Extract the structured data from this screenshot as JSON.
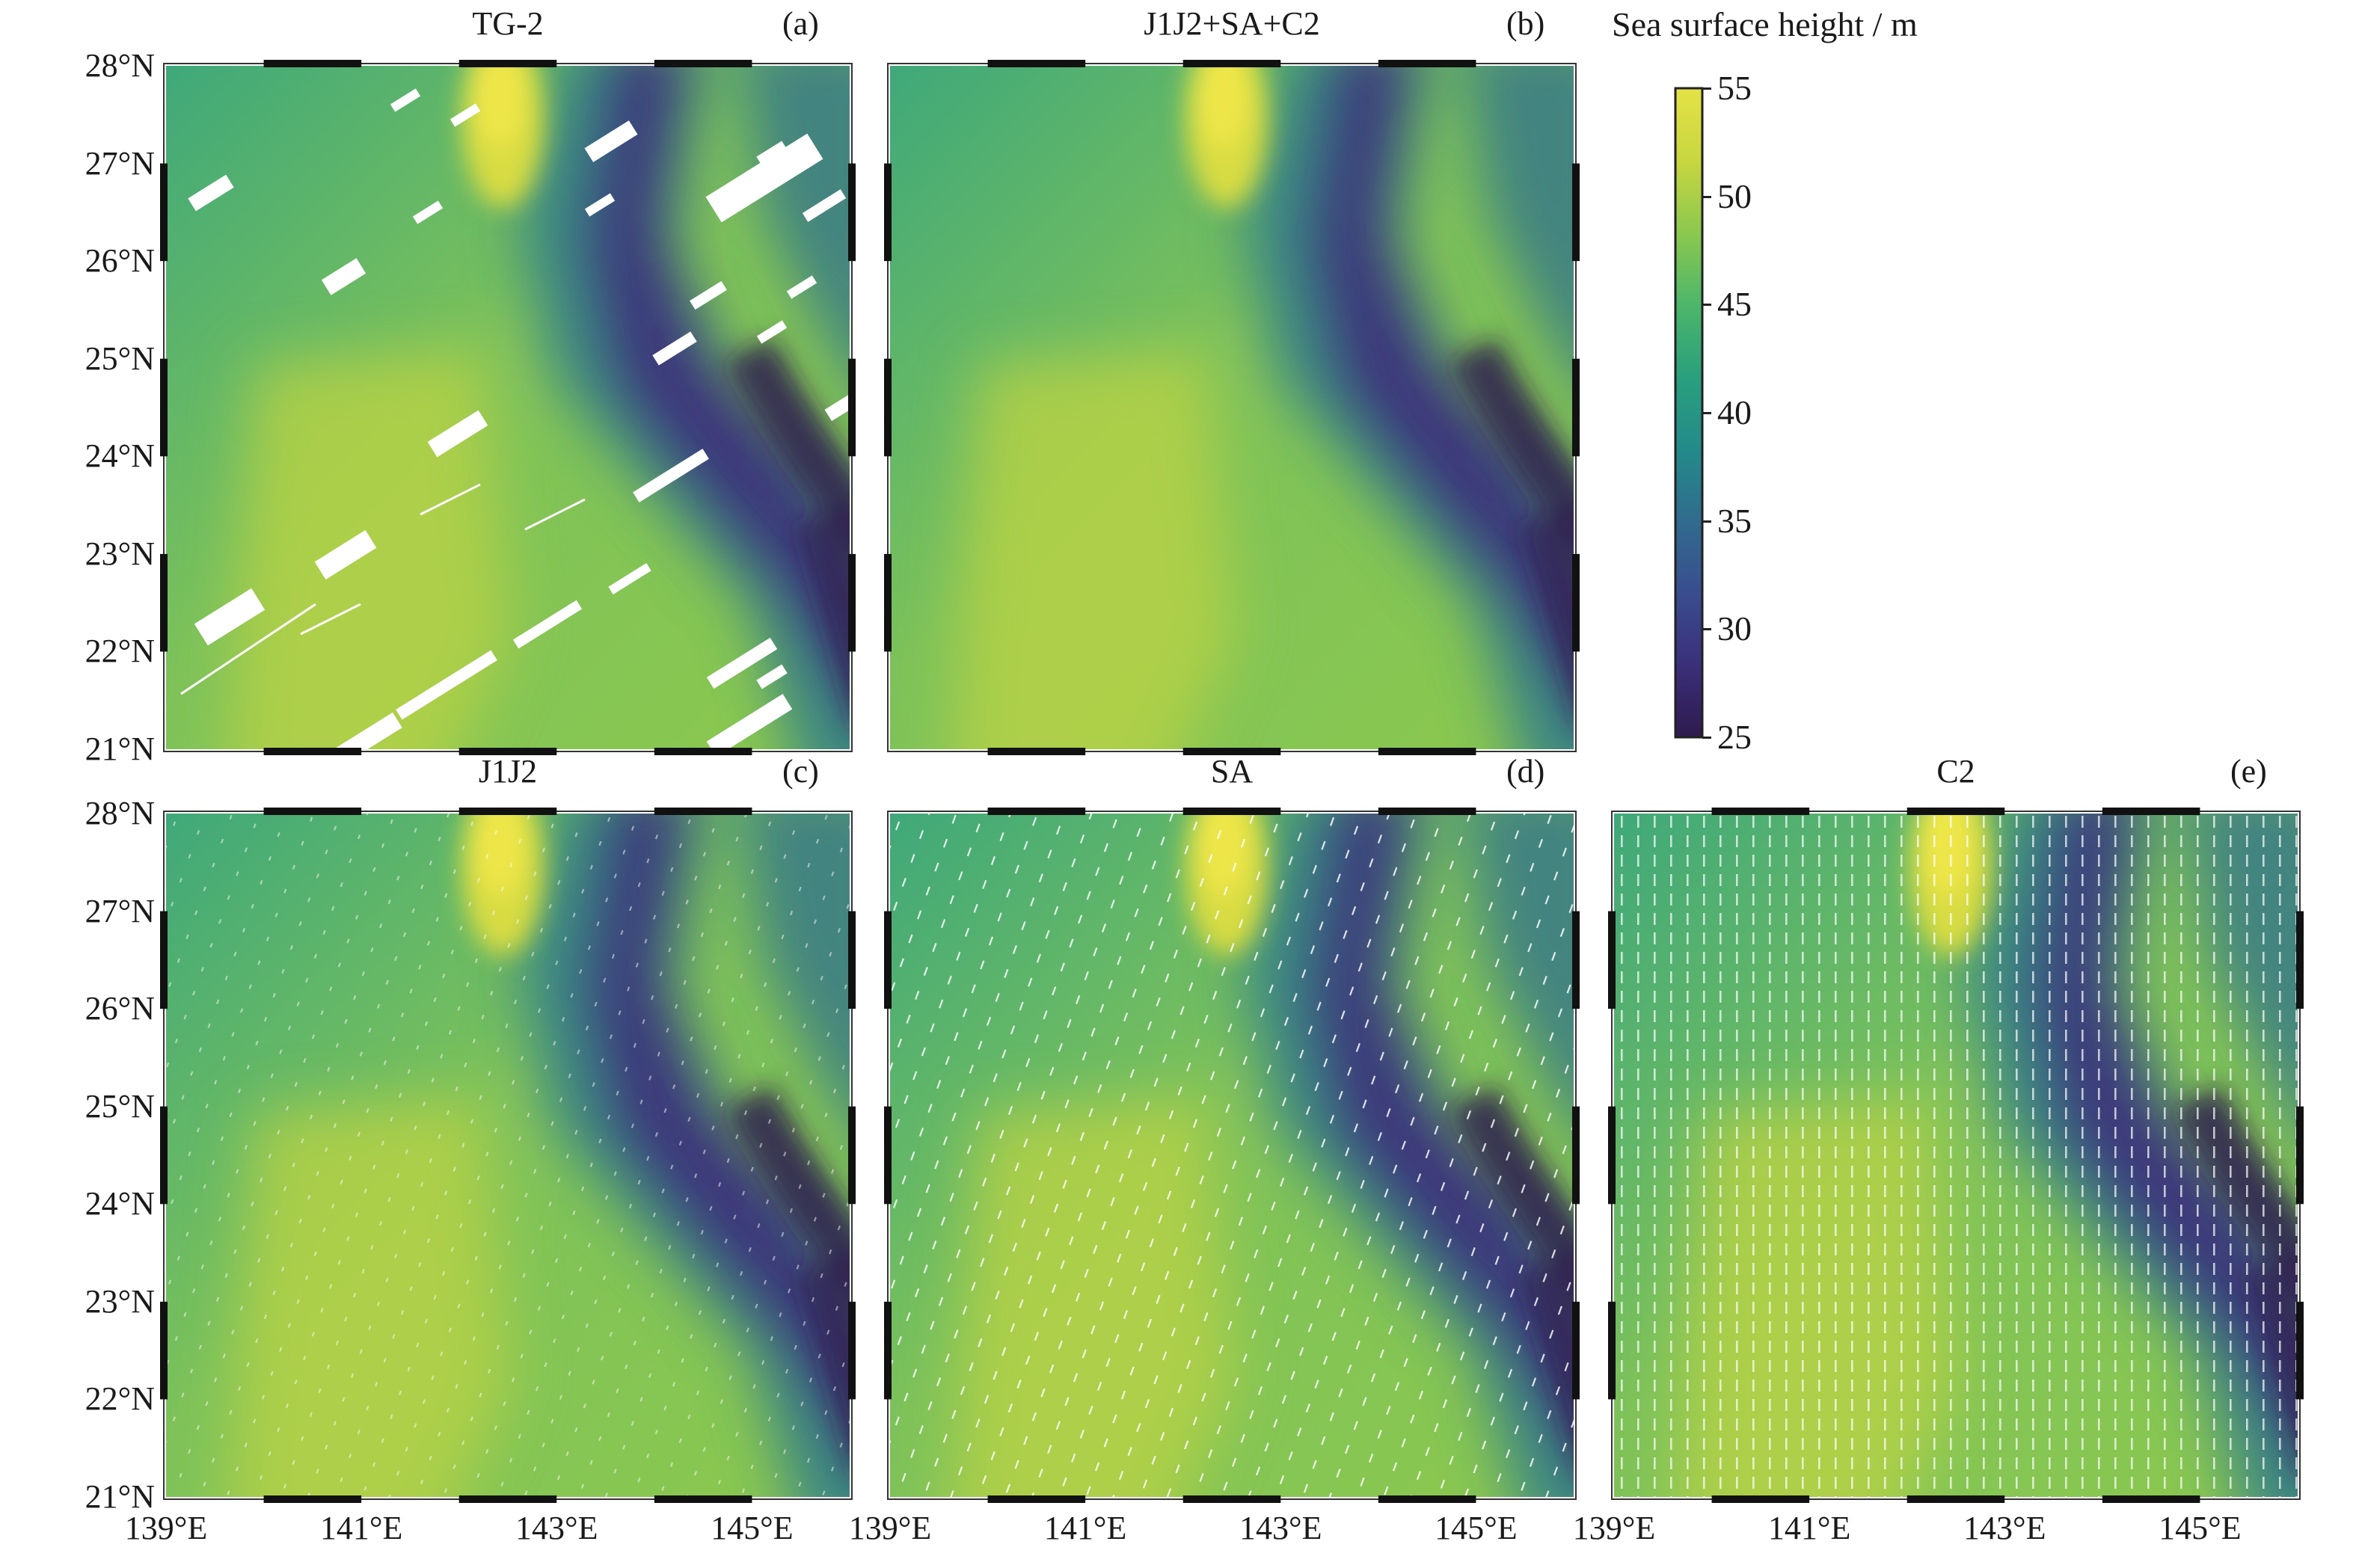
{
  "figure": {
    "panels": [
      {
        "id": "a",
        "title": "TG-2",
        "label": "(a)",
        "show_y_labels": true,
        "show_x_labels": false
      },
      {
        "id": "b",
        "title": "J1J2+SA+C2",
        "label": "(b)",
        "show_y_labels": false,
        "show_x_labels": false
      },
      {
        "id": "c",
        "title": "J1J2",
        "label": "(c)",
        "show_y_labels": true,
        "show_x_labels": true
      },
      {
        "id": "d",
        "title": "SA",
        "label": "(d)",
        "show_y_labels": false,
        "show_x_labels": true
      },
      {
        "id": "e",
        "title": "C2",
        "label": "(e)",
        "show_y_labels": false,
        "show_x_labels": true
      }
    ],
    "lat_labels": [
      "28°N",
      "27°N",
      "26°N",
      "25°N",
      "24°N",
      "23°N",
      "22°N",
      "21°N"
    ],
    "lon_labels": [
      "139°E",
      "141°E",
      "143°E",
      "145°E"
    ],
    "colorbar": {
      "title": "Sea surface height / m",
      "ticks": [
        "55",
        "50",
        "45",
        "40",
        "35",
        "30",
        "25"
      ],
      "colormap": [
        "#2d1a4e",
        "#3b2f7a",
        "#3a4d8f",
        "#316b8e",
        "#238b8a",
        "#2aa07d",
        "#4db66a",
        "#8cc84f",
        "#c8d640",
        "#e4e246"
      ]
    }
  }
}
